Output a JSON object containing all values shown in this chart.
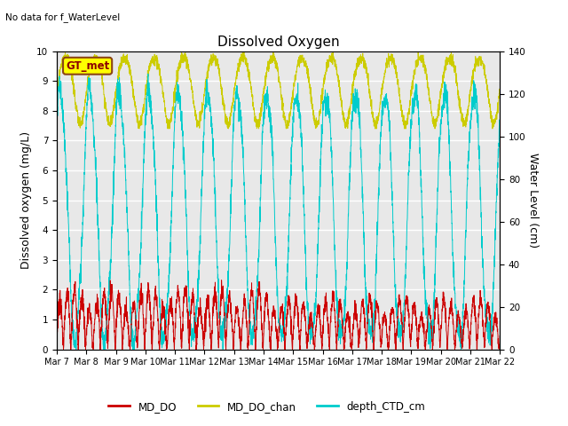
{
  "title": "Dissolved Oxygen",
  "top_left_text": "No data for f_WaterLevel",
  "gt_met_label": "GT_met",
  "ylabel_left": "Dissolved oxygen (mg/L)",
  "ylabel_right": "Water Level (cm)",
  "ylim_left": [
    0,
    10.0
  ],
  "ylim_right": [
    0,
    140
  ],
  "yticks_left": [
    0.0,
    1.0,
    2.0,
    3.0,
    4.0,
    5.0,
    6.0,
    7.0,
    8.0,
    9.0,
    10.0
  ],
  "yticks_right": [
    0,
    20,
    40,
    60,
    80,
    100,
    120,
    140
  ],
  "xtick_labels": [
    "Mar 7",
    "Mar 8",
    "Mar 9",
    "Mar 10",
    "Mar 11",
    "Mar 12",
    "Mar 13",
    "Mar 14",
    "Mar 15",
    "Mar 16",
    "Mar 17",
    "Mar 18",
    "Mar 19",
    "Mar 20",
    "Mar 21",
    "Mar 22"
  ],
  "legend_labels": [
    "MD_DO",
    "MD_DO_chan",
    "depth_CTD_cm"
  ],
  "line_colors": {
    "MD_DO": "#cc0000",
    "MD_DO_chan": "#cccc00",
    "depth_CTD_cm": "#00cccc"
  },
  "plot_bg_color": "#e8e8e8",
  "title_fontsize": 11,
  "axis_label_fontsize": 9,
  "tick_fontsize": 7.5
}
